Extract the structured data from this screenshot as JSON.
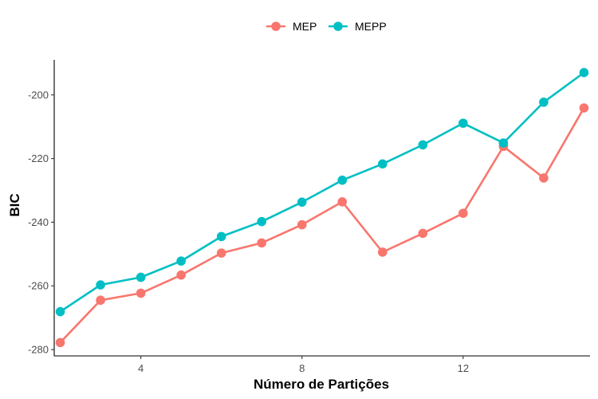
{
  "chart_data": {
    "type": "line",
    "xlabel": "Número de Partições",
    "ylabel": "BIC",
    "xlim": [
      1.85,
      15.15
    ],
    "ylim": [
      -282,
      -189
    ],
    "xticks": [
      4,
      8,
      12
    ],
    "yticks": [
      -280,
      -260,
      -240,
      -220,
      -200
    ],
    "grid": false,
    "legend_position": "top",
    "x": [
      2,
      3,
      4,
      5,
      6,
      7,
      8,
      9,
      10,
      11,
      12,
      13,
      14,
      15
    ],
    "series": [
      {
        "name": "MEP",
        "color": "#F8766D",
        "values": [
          -277.8,
          -264.5,
          -262.3,
          -256.6,
          -249.7,
          -246.5,
          -240.8,
          -233.6,
          -249.4,
          -243.5,
          -237.2,
          -216.2,
          -226.1,
          -204.1
        ]
      },
      {
        "name": "MEPP",
        "color": "#00BFC4",
        "values": [
          -268.1,
          -259.7,
          -257.3,
          -252.2,
          -244.5,
          -239.8,
          -233.7,
          -226.8,
          -221.7,
          -215.7,
          -208.9,
          -215.1,
          -202.3,
          -193.0
        ]
      }
    ]
  }
}
